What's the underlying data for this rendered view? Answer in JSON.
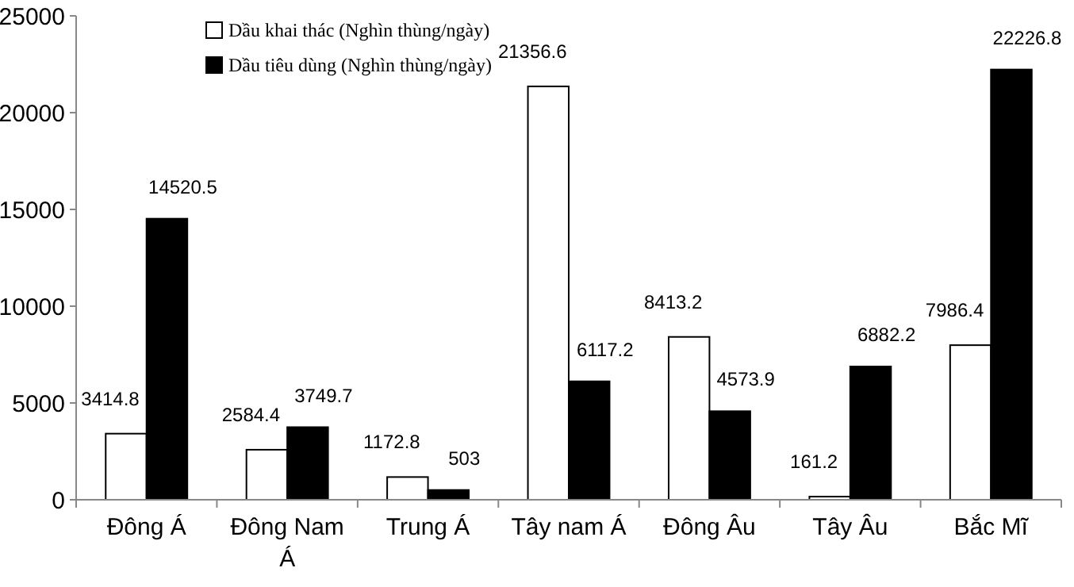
{
  "chart_data": {
    "type": "bar",
    "categories": [
      "Đông Á",
      "Đông Nam Á",
      "Trung Á",
      "Tây nam Á",
      "Đông Âu",
      "Tây Âu",
      "Bắc Mĩ"
    ],
    "series": [
      {
        "name": "Dầu khai thác (Nghìn thùng/ngày)",
        "color": "#ffffff",
        "values": [
          3414.8,
          2584.4,
          1172.8,
          21356.6,
          8413.2,
          161.2,
          7986.4
        ]
      },
      {
        "name": "Dầu tiêu dùng (Nghìn thùng/ngày)",
        "color": "#000000",
        "values": [
          14520.5,
          3749.7,
          503,
          6117.2,
          4573.9,
          6882.2,
          22226.8
        ]
      }
    ],
    "ylim": [
      0,
      25000
    ],
    "yticks": [
      0,
      5000,
      10000,
      15000,
      20000,
      25000
    ],
    "data_labels": true,
    "legend": "top",
    "grid": false
  }
}
